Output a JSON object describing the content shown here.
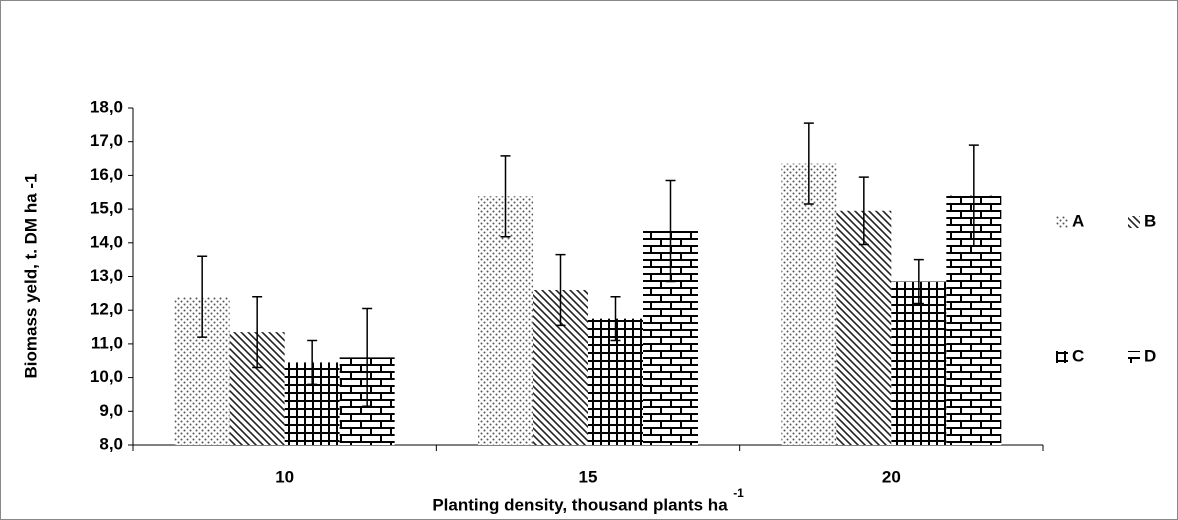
{
  "chart_data": {
    "type": "bar",
    "ylabel": "Biomass yeld, t. DM ha -1",
    "xlabel": "Planting density, thousand plants ha",
    "xlabel_superscript": "-1",
    "categories": [
      "10",
      "15",
      "20"
    ],
    "series": [
      {
        "name": "A",
        "color": "#000000",
        "pattern": "dots",
        "values": [
          12.4,
          15.38,
          16.35
        ],
        "errors": [
          1.2,
          1.2,
          1.2
        ]
      },
      {
        "name": "B",
        "color": "#000000",
        "pattern": "diagonal",
        "values": [
          11.35,
          12.6,
          14.95
        ],
        "errors": [
          1.05,
          1.05,
          1.0
        ]
      },
      {
        "name": "C",
        "color": "#000000",
        "pattern": "grid",
        "values": [
          10.45,
          11.75,
          12.85
        ],
        "errors": [
          0.65,
          0.65,
          0.65
        ]
      },
      {
        "name": "D",
        "color": "#000000",
        "pattern": "brick",
        "values": [
          10.6,
          14.35,
          15.4
        ],
        "errors": [
          1.45,
          1.5,
          1.5
        ]
      }
    ],
    "ylim": [
      8,
      18
    ],
    "yticks": [
      {
        "value": 8,
        "label": "8,0"
      },
      {
        "value": 9,
        "label": "9,0"
      },
      {
        "value": 10,
        "label": "10,0"
      },
      {
        "value": 11,
        "label": "11,0"
      },
      {
        "value": 12,
        "label": "12,0"
      },
      {
        "value": 13,
        "label": "13,0"
      },
      {
        "value": 14,
        "label": "14,0"
      },
      {
        "value": 15,
        "label": "15,0"
      },
      {
        "value": 16,
        "label": "16,0"
      },
      {
        "value": 17,
        "label": "17,0"
      },
      {
        "value": 18,
        "label": "18,0"
      }
    ],
    "grid": false,
    "legend": "right"
  }
}
